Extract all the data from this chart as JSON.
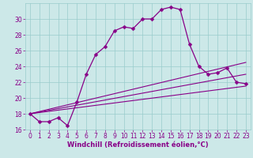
{
  "xlabel": "Windchill (Refroidissement éolien,°C)",
  "xlim": [
    -0.5,
    23.5
  ],
  "ylim": [
    16,
    32
  ],
  "yticks": [
    16,
    18,
    20,
    22,
    24,
    26,
    28,
    30
  ],
  "xticks": [
    0,
    1,
    2,
    3,
    4,
    5,
    6,
    7,
    8,
    9,
    10,
    11,
    12,
    13,
    14,
    15,
    16,
    17,
    18,
    19,
    20,
    21,
    22,
    23
  ],
  "bg_color": "#cce8e8",
  "grid_color": "#99cccc",
  "line_color": "#880088",
  "line1_x": [
    0,
    1,
    2,
    3,
    4,
    5,
    6,
    7,
    8,
    9,
    10,
    11,
    12,
    13,
    14,
    15,
    16,
    17,
    18,
    19,
    20,
    21,
    22,
    23
  ],
  "line1_y": [
    18.0,
    17.0,
    17.0,
    17.5,
    16.5,
    19.5,
    23.0,
    25.5,
    26.5,
    28.5,
    29.0,
    28.8,
    30.0,
    30.0,
    31.2,
    31.5,
    31.2,
    26.8,
    24.0,
    23.0,
    23.2,
    23.8,
    22.0,
    21.8
  ],
  "line2_x": [
    0,
    23
  ],
  "line2_y": [
    18.0,
    21.5
  ],
  "line3_x": [
    0,
    23
  ],
  "line3_y": [
    18.0,
    23.0
  ],
  "line4_x": [
    0,
    23
  ],
  "line4_y": [
    18.0,
    24.5
  ],
  "marker_style": "D",
  "marker_size": 2.5,
  "linewidth_main": 0.9,
  "linewidth_fan": 0.8,
  "tick_fontsize": 5.5,
  "xlabel_fontsize": 6.0
}
